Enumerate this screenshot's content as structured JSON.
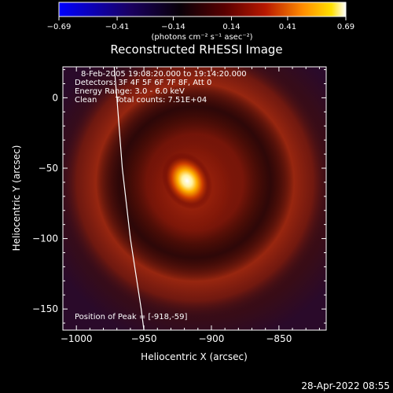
{
  "chart_data": {
    "type": "heatmap",
    "title": "Reconstructed RHESSI Image",
    "xlabel": "Heliocentric X (arcsec)",
    "ylabel": "Heliocentric Y (arcsec)",
    "xlim": [
      -1010,
      -815
    ],
    "ylim": [
      -165,
      22
    ],
    "x_ticks": [
      -1000,
      -950,
      -900,
      -850
    ],
    "y_ticks": [
      0,
      -50,
      -100,
      -150
    ],
    "x_tick_labels": [
      "−1000",
      "−950",
      "−900",
      "−850"
    ],
    "y_tick_labels": [
      "0",
      "−50",
      "−100",
      "−150"
    ],
    "colorbar": {
      "range": [
        -0.69,
        0.69
      ],
      "ticks": [
        -0.69,
        -0.41,
        -0.14,
        0.14,
        0.41,
        0.69
      ],
      "tick_labels": [
        "−0.69",
        "−0.41",
        "−0.14",
        "0.14",
        "0.41",
        "0.69"
      ],
      "units": "(photons cm⁻² s⁻¹ asec⁻²)",
      "colormap": [
        "#0000ff",
        "#1a0060",
        "#000000",
        "#5a0000",
        "#b81800",
        "#ff8c00",
        "#ffe000",
        "#ffffff"
      ]
    },
    "annotations": {
      "time_range": "8-Feb-2005 19:08:20.000 to 19:14:20.000",
      "detectors": "Detectors: 3F 4F 5F 6F 7F 8F, Att 0",
      "energy_range": "Energy Range: 3.0 - 6.0 keV",
      "method": "Clean",
      "total_counts": "Total counts: 7.51E+04",
      "peak_position": "Position of Peak = [-918,-59]"
    },
    "peak": {
      "x": -918,
      "y": -59
    },
    "limb_curve": [
      [
        -972,
        22
      ],
      [
        -970,
        0
      ],
      [
        -966,
        -50
      ],
      [
        -960,
        -100
      ],
      [
        -952,
        -150
      ],
      [
        -950,
        -165
      ]
    ],
    "footer_date": "28-Apr-2022 08:55"
  }
}
